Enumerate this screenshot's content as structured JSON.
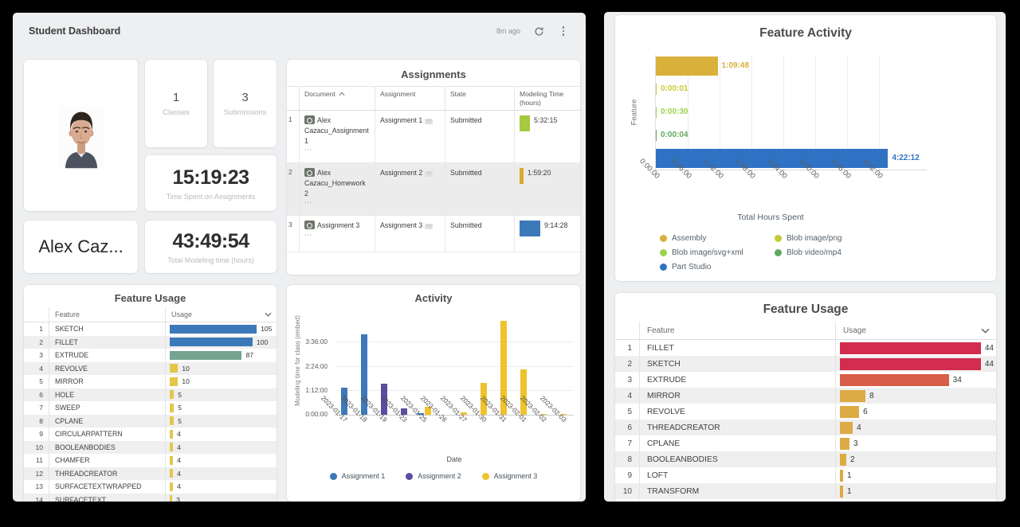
{
  "header": {
    "title": "Student Dashboard",
    "updated": "8m ago"
  },
  "icons": {
    "refresh": "refresh-circular-arrow",
    "menu": "kebab-vertical-dots",
    "sort": "chevron-up",
    "dropdown": "chevron-down",
    "ellipsis": "⋯"
  },
  "profile": {
    "name": "Alex Caz...",
    "photo": "student-portrait"
  },
  "stats": {
    "classes": {
      "value": "1",
      "label": "Classes"
    },
    "submissions": {
      "value": "3",
      "label": "Submissions"
    },
    "time_spent": {
      "value": "15:19:23",
      "label": "Time Spent on Assignments"
    },
    "total_modeling": {
      "value": "43:49:54",
      "label": "Total Modeling time (hours)"
    }
  },
  "assignments": {
    "title": "Assignments",
    "columns": {
      "document": "Document",
      "assignment": "Assignment",
      "state": "State",
      "modeling_time_line1": "Modeling Time",
      "modeling_time_line2": "(hours)"
    },
    "rows": [
      {
        "num": "1",
        "document": "Alex Cazacu_Assignment 1",
        "ellipsis": "⋯",
        "assignment": "Assignment 1",
        "state": "Submitted",
        "time": "5:32:15",
        "chip_color": "#a7c93f",
        "chip_width": 13
      },
      {
        "num": "2",
        "document": "Alex Cazacu_Homework 2",
        "ellipsis": "⋯",
        "assignment": "Assignment 2",
        "state": "Submitted",
        "time": "1:59:20",
        "chip_color": "#d9a930",
        "chip_width": 5
      },
      {
        "num": "3",
        "document": "Assignment 3",
        "ellipsis": "⋯",
        "assignment": "Assignment 3",
        "state": "Submitted",
        "time": "9:14:28",
        "chip_color": "#3c79b8",
        "chip_width": 26
      }
    ]
  },
  "chart_data": [
    {
      "id": "feature_usage_left",
      "type": "table",
      "title": "Feature Usage",
      "columns": [
        "Feature",
        "Usage"
      ],
      "max_usage": 105,
      "rows": [
        {
          "rank": "1",
          "feature": "SKETCH",
          "usage": 105,
          "color": "#3c79b8"
        },
        {
          "rank": "2",
          "feature": "FILLET",
          "usage": 100,
          "color": "#3c79b8"
        },
        {
          "rank": "3",
          "feature": "EXTRUDE",
          "usage": 87,
          "color": "#74a390"
        },
        {
          "rank": "4",
          "feature": "REVOLVE",
          "usage": 10,
          "color": "#e2c74b"
        },
        {
          "rank": "5",
          "feature": "MIRROR",
          "usage": 10,
          "color": "#e2c74b"
        },
        {
          "rank": "6",
          "feature": "HOLE",
          "usage": 5,
          "color": "#e2c74b"
        },
        {
          "rank": "7",
          "feature": "SWEEP",
          "usage": 5,
          "color": "#e2c74b"
        },
        {
          "rank": "8",
          "feature": "CPLANE",
          "usage": 5,
          "color": "#e2c74b"
        },
        {
          "rank": "9",
          "feature": "CIRCULARPATTERN",
          "usage": 4,
          "color": "#e2c74b"
        },
        {
          "rank": "10",
          "feature": "BOOLEANBODIES",
          "usage": 4,
          "color": "#e2c74b"
        },
        {
          "rank": "11",
          "feature": "CHAMFER",
          "usage": 4,
          "color": "#e2c74b"
        },
        {
          "rank": "12",
          "feature": "THREADCREATOR",
          "usage": 4,
          "color": "#e2c74b"
        },
        {
          "rank": "13",
          "feature": "SURFACETEXTWRAPPED",
          "usage": 4,
          "color": "#e2c74b"
        },
        {
          "rank": "14",
          "feature": "SURFACETEXT",
          "usage": 3,
          "color": "#e2c74b"
        }
      ]
    },
    {
      "id": "activity",
      "type": "bar",
      "title": "Activity",
      "xlabel": "Date",
      "ylabel": "Modeling time for class (embed)",
      "categories": [
        "2023-01-17",
        "2023-01-18",
        "2023-01-19",
        "2023-01-23",
        "2023-01-25",
        "2023-01-26",
        "2023-01-27",
        "2023-01-30",
        "2023-01-31",
        "2023-02-01",
        "2023-02-02",
        "2023-02-03"
      ],
      "y_ticks": [
        {
          "label": "0:00:00",
          "minutes": 0
        },
        {
          "label": "1:12:00",
          "minutes": 72
        },
        {
          "label": "2:24:00",
          "minutes": 144
        },
        {
          "label": "3:36:00",
          "minutes": 216
        }
      ],
      "ylim_minutes": [
        0,
        324
      ],
      "grid": "horizontal",
      "legend_position": "bottom",
      "series": [
        {
          "name": "Assignment 1",
          "color": "#3c79b8",
          "values_minutes": [
            80,
            240,
            0,
            0,
            4,
            0,
            0,
            0,
            0,
            0,
            0,
            0
          ]
        },
        {
          "name": "Assignment 2",
          "color": "#5a4d9e",
          "values_minutes": [
            0,
            0,
            93,
            20,
            0,
            0,
            0,
            0,
            0,
            0,
            0,
            0
          ]
        },
        {
          "name": "Assignment 3",
          "color": "#eec32d",
          "values_minutes": [
            0,
            0,
            0,
            0,
            25,
            0,
            8,
            95,
            282,
            135,
            2,
            2
          ]
        }
      ]
    },
    {
      "id": "feature_activity",
      "type": "bar",
      "orientation": "horizontal",
      "title": "Feature Activity",
      "xlabel": "Total Hours Spent",
      "ylabel": "Feature",
      "x_ticks": [
        {
          "label": "0:00:00",
          "minutes": 0
        },
        {
          "label": "0:36:00",
          "minutes": 36
        },
        {
          "label": "1:12:00",
          "minutes": 72
        },
        {
          "label": "1:48:00",
          "minutes": 108
        },
        {
          "label": "2:24:00",
          "minutes": 144
        },
        {
          "label": "3:00:00",
          "minutes": 180
        },
        {
          "label": "3:36:00",
          "minutes": 216
        },
        {
          "label": "4:12:00",
          "minutes": 252
        }
      ],
      "xlim_minutes": [
        0,
        288
      ],
      "grid": "vertical",
      "legend_position": "bottom",
      "bars": [
        {
          "name": "Assembly",
          "value_label": "1:09:48",
          "minutes": 69.8,
          "color": "#d8b03a",
          "thick": true
        },
        {
          "name": "Blob image/png",
          "value_label": "0:00:01",
          "minutes": 0.02,
          "color": "#c3cc33",
          "thick": false
        },
        {
          "name": "Blob image/svg+xml",
          "value_label": "0:00:30",
          "minutes": 0.5,
          "color": "#9bd24a",
          "thick": false
        },
        {
          "name": "Blob video/mp4",
          "value_label": "0:00:04",
          "minutes": 0.07,
          "color": "#5fa85f",
          "thick": false
        },
        {
          "name": "Part Studio",
          "value_label": "4:22:12",
          "minutes": 262.2,
          "color": "#2f72c4",
          "thick": true
        }
      ]
    },
    {
      "id": "feature_usage_right",
      "type": "table",
      "title": "Feature Usage",
      "columns": [
        "Feature",
        "Usage"
      ],
      "max_usage": 44,
      "rows": [
        {
          "rank": "1",
          "feature": "FILLET",
          "usage": 44,
          "color": "#d22c4e"
        },
        {
          "rank": "2",
          "feature": "SKETCH",
          "usage": 44,
          "color": "#d22c4e"
        },
        {
          "rank": "3",
          "feature": "EXTRUDE",
          "usage": 34,
          "color": "#d95e49"
        },
        {
          "rank": "4",
          "feature": "MIRROR",
          "usage": 8,
          "color": "#dcab43"
        },
        {
          "rank": "5",
          "feature": "REVOLVE",
          "usage": 6,
          "color": "#dcab43"
        },
        {
          "rank": "6",
          "feature": "THREADCREATOR",
          "usage": 4,
          "color": "#dcab43"
        },
        {
          "rank": "7",
          "feature": "CPLANE",
          "usage": 3,
          "color": "#dcab43"
        },
        {
          "rank": "8",
          "feature": "BOOLEANBODIES",
          "usage": 2,
          "color": "#dcab43"
        },
        {
          "rank": "9",
          "feature": "LOFT",
          "usage": 1,
          "color": "#dcab43"
        },
        {
          "rank": "10",
          "feature": "TRANSFORM",
          "usage": 1,
          "color": "#dcab43"
        }
      ]
    }
  ]
}
